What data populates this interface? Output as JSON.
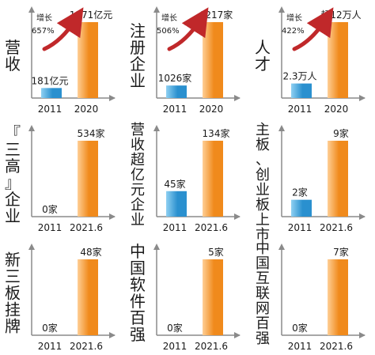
{
  "colors": {
    "axis": "#8a8a8a",
    "text": "#1a1a1a",
    "growth_arrow": "#c0282a",
    "bar_orange_light": "#ffcf96",
    "bar_orange_dark": "#f08a1c",
    "bar_blue_light": "#8fd0f2",
    "bar_blue_dark": "#2a90cf"
  },
  "chart_data": [
    {
      "type": "bar",
      "title": "营收",
      "categories": [
        "2011",
        "2020"
      ],
      "values": [
        181,
        1371
      ],
      "value_labels": [
        "181亿元",
        "1371亿元"
      ],
      "growth": {
        "label": "增长",
        "value": "657%"
      }
    },
    {
      "type": "bar",
      "title": "注册企业",
      "categories": [
        "2011",
        "2020"
      ],
      "values": [
        1026,
        6217
      ],
      "value_labels": [
        "1026家",
        "6217家"
      ],
      "growth": {
        "label": "增长",
        "value": "506%"
      }
    },
    {
      "type": "bar",
      "title": "人才",
      "categories": [
        "2011",
        "2020"
      ],
      "values": [
        2.3,
        12
      ],
      "value_labels": [
        "2.3万人",
        "超12万人"
      ],
      "growth": {
        "label": "增长",
        "value": "422%"
      }
    },
    {
      "type": "bar",
      "title": "『三高』企业",
      "categories": [
        "2011",
        "2021.6"
      ],
      "values": [
        0,
        534
      ],
      "value_labels": [
        "0家",
        "534家"
      ]
    },
    {
      "type": "bar",
      "title": "营收超亿元企业",
      "categories": [
        "2011",
        "2021.6"
      ],
      "values": [
        45,
        134
      ],
      "value_labels": [
        "45家",
        "134家"
      ]
    },
    {
      "type": "bar",
      "title": "主板、创业板上市",
      "categories": [
        "2011",
        "2021.6"
      ],
      "values": [
        2,
        9
      ],
      "value_labels": [
        "2家",
        "9家"
      ]
    },
    {
      "type": "bar",
      "title": "新三板挂牌",
      "categories": [
        "2011",
        "2021.6"
      ],
      "values": [
        0,
        48
      ],
      "value_labels": [
        "0家",
        "48家"
      ]
    },
    {
      "type": "bar",
      "title": "中国软件百强",
      "categories": [
        "2011",
        "2021.6"
      ],
      "values": [
        0,
        5
      ],
      "value_labels": [
        "0家",
        "5家"
      ]
    },
    {
      "type": "bar",
      "title": "中国互联网百强",
      "categories": [
        "2011",
        "2021.6"
      ],
      "values": [
        0,
        7
      ],
      "value_labels": [
        "0家",
        "7家"
      ]
    }
  ]
}
